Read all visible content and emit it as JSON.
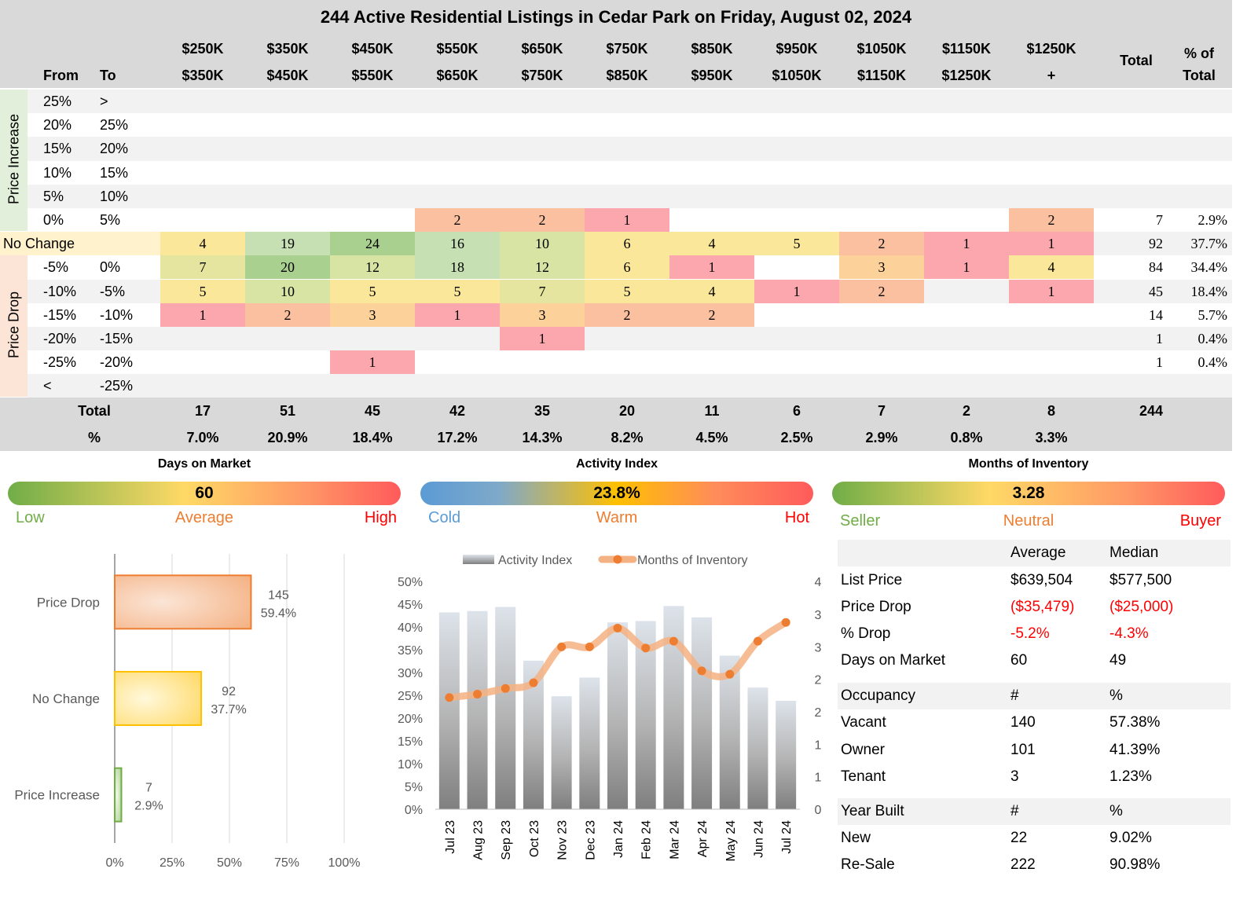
{
  "title": "244 Active Residential Listings in Cedar Park on Friday, August 02, 2024",
  "matrix": {
    "from_label": "From",
    "to_label": "To",
    "price_ranges": [
      {
        "from": "$250K",
        "to": "$350K"
      },
      {
        "from": "$350K",
        "to": "$450K"
      },
      {
        "from": "$450K",
        "to": "$550K"
      },
      {
        "from": "$550K",
        "to": "$650K"
      },
      {
        "from": "$650K",
        "to": "$750K"
      },
      {
        "from": "$750K",
        "to": "$850K"
      },
      {
        "from": "$850K",
        "to": "$950K"
      },
      {
        "from": "$950K",
        "to": "$1050K"
      },
      {
        "from": "$1050K",
        "to": "$1150K"
      },
      {
        "from": "$1150K",
        "to": "$1250K"
      },
      {
        "from": "$1250K",
        "to": "+"
      }
    ],
    "total_label": "Total",
    "pct_total_label_1": "% of",
    "pct_total_label_2": "Total",
    "group_increase": "Price Increase",
    "group_drop": "Price Drop",
    "rows": [
      {
        "group": "increase",
        "from": "25%",
        "to": ">",
        "cells": [
          "",
          "",
          "",
          "",
          "",
          "",
          "",
          "",
          "",
          "",
          ""
        ],
        "total": "",
        "pct": ""
      },
      {
        "group": "increase",
        "from": "20%",
        "to": "25%",
        "cells": [
          "",
          "",
          "",
          "",
          "",
          "",
          "",
          "",
          "",
          "",
          ""
        ],
        "total": "",
        "pct": ""
      },
      {
        "group": "increase",
        "from": "15%",
        "to": "20%",
        "cells": [
          "",
          "",
          "",
          "",
          "",
          "",
          "",
          "",
          "",
          "",
          ""
        ],
        "total": "",
        "pct": ""
      },
      {
        "group": "increase",
        "from": "10%",
        "to": "15%",
        "cells": [
          "",
          "",
          "",
          "",
          "",
          "",
          "",
          "",
          "",
          "",
          ""
        ],
        "total": "",
        "pct": ""
      },
      {
        "group": "increase",
        "from": "5%",
        "to": "10%",
        "cells": [
          "",
          "",
          "",
          "",
          "",
          "",
          "",
          "",
          "",
          "",
          ""
        ],
        "total": "",
        "pct": ""
      },
      {
        "group": "increase",
        "from": "0%",
        "to": "5%",
        "cells": [
          "",
          "",
          "",
          "2",
          "2",
          "1",
          "",
          "",
          "",
          "",
          "2"
        ],
        "total": "7",
        "pct": "2.9%"
      },
      {
        "group": "nochange",
        "from": "No Change",
        "to": "",
        "cells": [
          "4",
          "19",
          "24",
          "16",
          "10",
          "6",
          "4",
          "5",
          "2",
          "1",
          "1"
        ],
        "total": "92",
        "pct": "37.7%"
      },
      {
        "group": "drop",
        "from": "-5%",
        "to": "0%",
        "cells": [
          "7",
          "20",
          "12",
          "18",
          "12",
          "6",
          "1",
          "",
          "3",
          "1",
          "4"
        ],
        "total": "84",
        "pct": "34.4%"
      },
      {
        "group": "drop",
        "from": "-10%",
        "to": "-5%",
        "cells": [
          "5",
          "10",
          "5",
          "5",
          "7",
          "5",
          "4",
          "1",
          "2",
          "",
          "1"
        ],
        "total": "45",
        "pct": "18.4%"
      },
      {
        "group": "drop",
        "from": "-15%",
        "to": "-10%",
        "cells": [
          "1",
          "2",
          "3",
          "1",
          "3",
          "2",
          "2",
          "",
          "",
          "",
          ""
        ],
        "total": "14",
        "pct": "5.7%"
      },
      {
        "group": "drop",
        "from": "-20%",
        "to": "-15%",
        "cells": [
          "",
          "",
          "",
          "",
          "1",
          "",
          "",
          "",
          "",
          "",
          ""
        ],
        "total": "1",
        "pct": "0.4%"
      },
      {
        "group": "drop",
        "from": "-25%",
        "to": "-20%",
        "cells": [
          "",
          "",
          "1",
          "",
          "",
          "",
          "",
          "",
          "",
          "",
          ""
        ],
        "total": "1",
        "pct": "0.4%"
      },
      {
        "group": "drop",
        "from": "<",
        "to": "-25%",
        "cells": [
          "",
          "",
          "",
          "",
          "",
          "",
          "",
          "",
          "",
          "",
          ""
        ],
        "total": "",
        "pct": ""
      }
    ],
    "footer_total_label": "Total",
    "footer_pct_label": "%",
    "col_totals": [
      "17",
      "51",
      "45",
      "42",
      "35",
      "20",
      "11",
      "6",
      "7",
      "2",
      "8"
    ],
    "col_pcts": [
      "7.0%",
      "20.9%",
      "18.4%",
      "17.2%",
      "14.3%",
      "8.2%",
      "4.5%",
      "2.5%",
      "2.9%",
      "0.8%",
      "3.3%"
    ],
    "grand_total": "244"
  },
  "gauges": [
    {
      "title": "Days on Market",
      "value": "60",
      "left": "Low",
      "mid": "Average",
      "right": "High"
    },
    {
      "title": "Activity Index",
      "value": "23.8%",
      "left": "Cold",
      "mid": "Warm",
      "right": "Hot"
    },
    {
      "title": "Months of Inventory",
      "value": "3.28",
      "left": "Seller",
      "mid": "Neutral",
      "right": "Buyer"
    }
  ],
  "colors": {
    "low": "#70ad47",
    "mid": "#ed7d31",
    "high": "#ff0000",
    "cold": "#5b9bd5"
  },
  "chart_data": [
    {
      "type": "bar",
      "orientation": "horizontal",
      "categories": [
        "Price Drop",
        "No Change",
        "Price Increase"
      ],
      "values": [
        145,
        92,
        7
      ],
      "percents": [
        "59.4%",
        "37.7%",
        "2.9%"
      ],
      "value_labels": [
        "145",
        "92",
        "7"
      ],
      "xlim": [
        0,
        100
      ],
      "x_ticks": [
        "0%",
        "25%",
        "50%",
        "75%",
        "100%"
      ],
      "x_tick_values": [
        0,
        25,
        50,
        75,
        100
      ],
      "percent_values": [
        59.4,
        37.7,
        2.9
      ],
      "bar_colors": [
        "#f4b183",
        "#ffd966",
        "#a9d18e"
      ],
      "grid": true
    },
    {
      "type": "bar+line",
      "categories": [
        "Jul 23",
        "Aug 23",
        "Sep 23",
        "Oct 23",
        "Nov 23",
        "Dec 23",
        "Jan 24",
        "Feb 24",
        "Mar 24",
        "Apr 24",
        "May 24",
        "Jun 24",
        "Jul 24"
      ],
      "series": [
        {
          "name": "Activity Index",
          "axis": "left",
          "values": [
            43.2,
            43.5,
            44.4,
            32.6,
            24.8,
            28.9,
            41.0,
            41.3,
            44.6,
            42.1,
            33.7,
            26.7,
            23.8
          ]
        },
        {
          "name": "Months of Inventory",
          "axis": "right",
          "values": [
            1.96,
            2.02,
            2.12,
            2.22,
            2.85,
            2.85,
            3.18,
            2.83,
            2.95,
            2.43,
            2.37,
            2.95,
            3.28
          ]
        }
      ],
      "ylim_left": [
        0,
        50
      ],
      "y_ticks_left": [
        "0%",
        "5%",
        "10%",
        "15%",
        "20%",
        "25%",
        "30%",
        "35%",
        "40%",
        "45%",
        "50%"
      ],
      "ylim_right": [
        0,
        4
      ],
      "y_ticks_right": [
        "0",
        "1",
        "1",
        "2",
        "2",
        "3",
        "3",
        "4"
      ],
      "y_tick_values_right": [
        0,
        0.57,
        1.14,
        1.71,
        2.28,
        2.85,
        3.42,
        4
      ]
    }
  ],
  "stats": {
    "summary": {
      "h_avg": "Average",
      "h_med": "Median",
      "rows": [
        {
          "label": "List Price",
          "avg": "$639,504",
          "med": "$577,500",
          "red": false
        },
        {
          "label": "Price Drop",
          "avg": "($35,479)",
          "med": "($25,000)",
          "red": true
        },
        {
          "label": "% Drop",
          "avg": "-5.2%",
          "med": "-4.3%",
          "red": true
        },
        {
          "label": "Days on Market",
          "avg": "60",
          "med": "49",
          "red": false
        }
      ]
    },
    "occupancy": {
      "label": "Occupancy",
      "h1": "#",
      "h2": "%",
      "rows": [
        {
          "label": "Vacant",
          "n": "140",
          "p": "57.38%"
        },
        {
          "label": "Owner",
          "n": "101",
          "p": "41.39%"
        },
        {
          "label": "Tenant",
          "n": "3",
          "p": "1.23%"
        }
      ]
    },
    "year_built": {
      "label": "Year Built",
      "h1": "#",
      "h2": "%",
      "rows": [
        {
          "label": "New",
          "n": "22",
          "p": "9.02%"
        },
        {
          "label": "Re-Sale",
          "n": "222",
          "p": "90.98%"
        }
      ]
    }
  }
}
